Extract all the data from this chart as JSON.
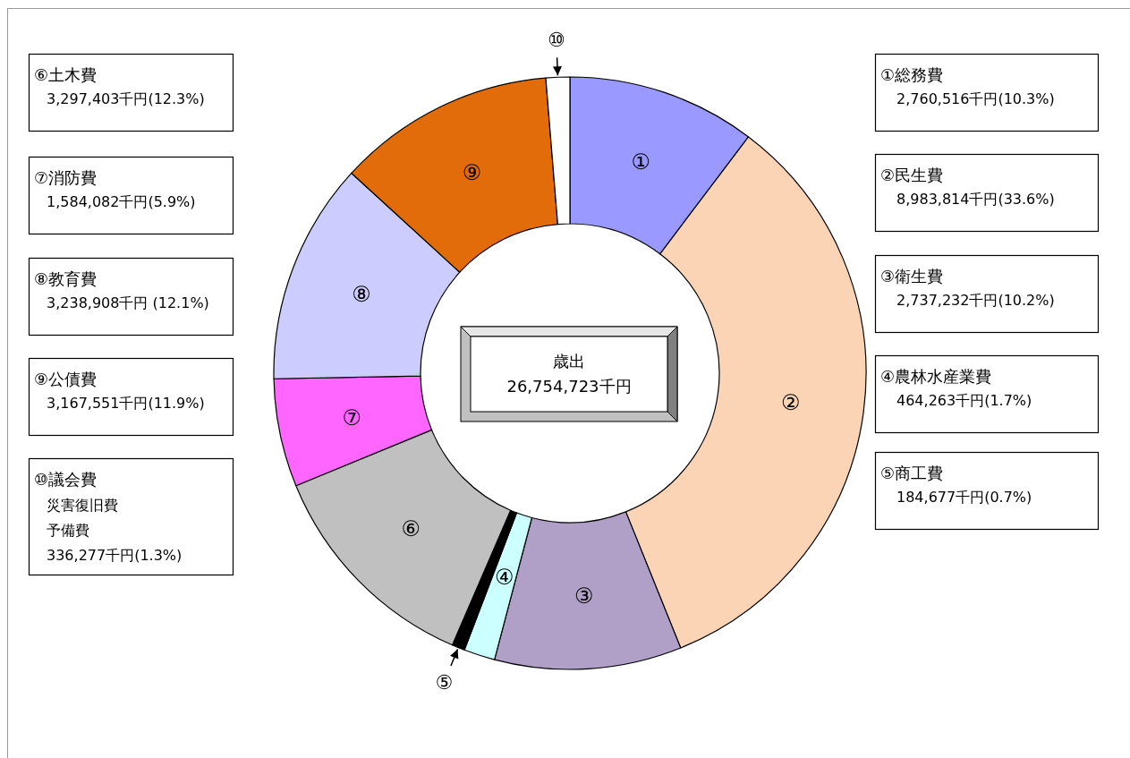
{
  "chart_data": {
    "type": "donut",
    "title": "歳出",
    "subtitle": "26,754,723千円",
    "categories": [
      "①",
      "②",
      "③",
      "④",
      "⑤",
      "⑥",
      "⑦",
      "⑧",
      "⑨",
      "⑩"
    ],
    "values": [
      10.3,
      33.6,
      10.2,
      1.7,
      0.7,
      12.3,
      5.9,
      12.1,
      11.9,
      1.3
    ],
    "colors": [
      "#9999ff",
      "#fad4b4",
      "#b0a0c8",
      "#ccffff",
      "#000000",
      "#c0c0c0",
      "#ff66ff",
      "#ccccff",
      "#e36c0a",
      "#ffffff"
    ],
    "annotations": [
      "①総務費",
      "2,760,516千円(10.3%)",
      "②民生費",
      "8,983,814千円(33.6%)",
      "③衛生費",
      "2,737,232千円(10.2%)",
      "④農林水産業費",
      "464,263千円(1.7%)",
      "⑤商工費",
      "184,677千円(0.7%)",
      "⑥土木費",
      "3,297,403千円(12.3%)",
      "⑦消防費",
      "1,584,082千円(5.9%)",
      "⑧教育費",
      "3,238,908千円 (12.1%)",
      "⑨公債費",
      "3,167,551千円(11.9%)",
      "⑩議会費",
      "災害復旧費",
      "予備費",
      "336,277千円(1.3%)"
    ]
  }
}
